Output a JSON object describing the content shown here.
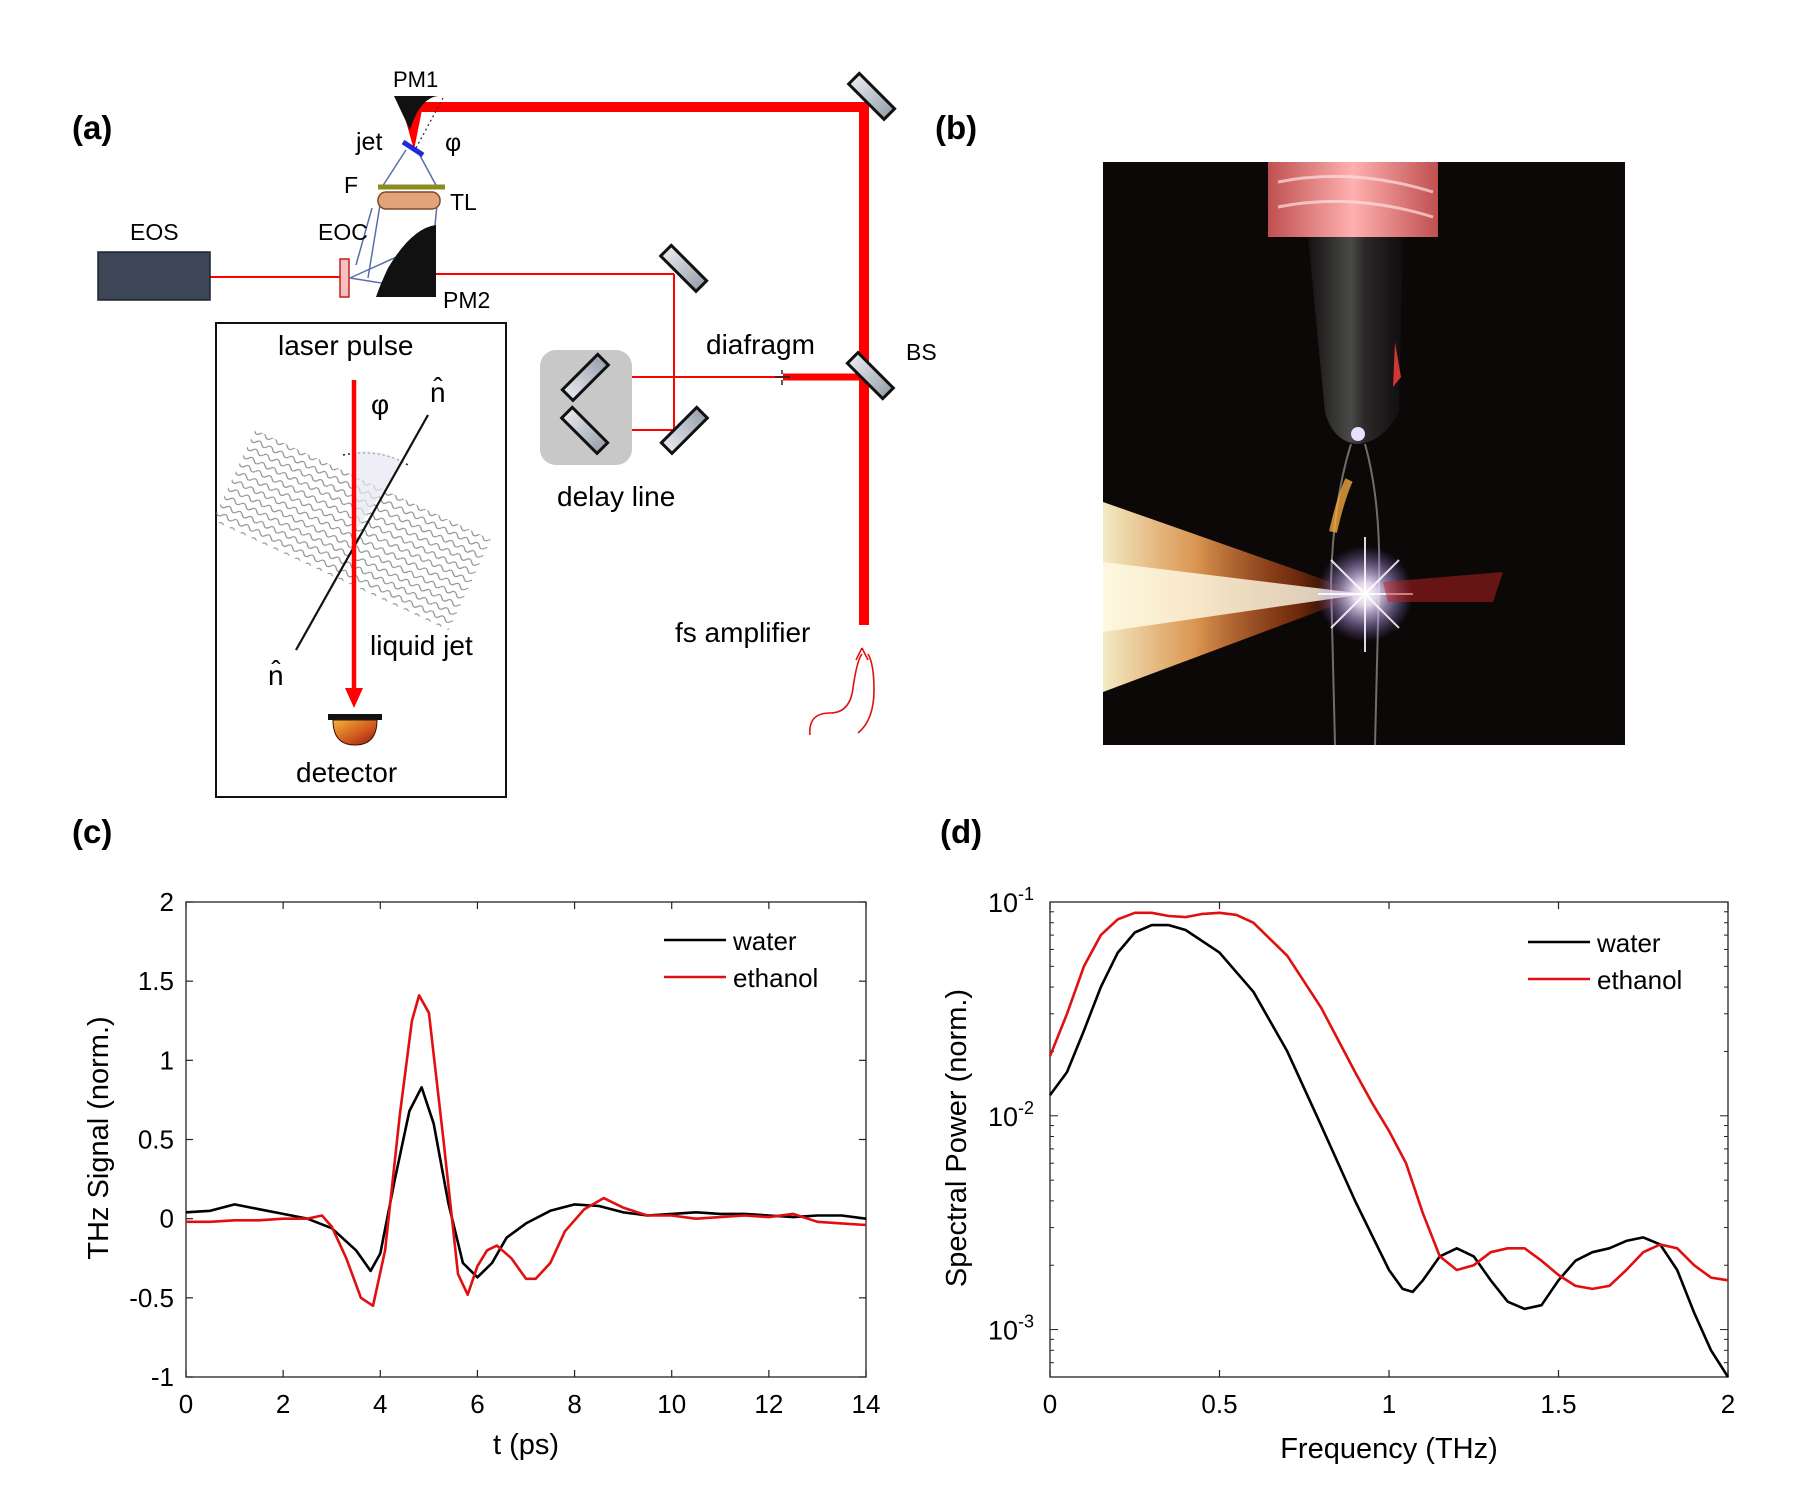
{
  "panels": {
    "a": "(a)",
    "b": "(b)",
    "c": "(c)",
    "d": "(d)"
  },
  "setup": {
    "pm1": "PM1",
    "jet": "jet",
    "phi": "φ",
    "f": "F",
    "tl": "TL",
    "eos": "EOS",
    "eoc": "EOC",
    "pm2": "PM2",
    "bs": "BS",
    "diafragm": "diafragm",
    "delay_line": "delay line",
    "fs_amplifier": "fs amplifier"
  },
  "inset": {
    "laser_pulse": "laser pulse",
    "phi": "φ",
    "n_hat_top": "n̂",
    "n_hat_bottom": "n̂",
    "liquid_jet": "liquid jet",
    "detector": "detector"
  },
  "colors": {
    "laser": "#ff0000",
    "thz_beam": "#5a6fa8",
    "eos_box": "#3d4657",
    "filter": "#8b8b22",
    "lens": "#e4a27a",
    "jet": "#1f2ad8",
    "water": "#000000",
    "ethanol": "#e01010"
  },
  "chart_data": [
    {
      "type": "line",
      "xlabel": "t (ps)",
      "ylabel": "THz Signal (norm.)",
      "xlim": [
        0,
        14
      ],
      "ylim": [
        -1,
        2
      ],
      "xticks": [
        "0",
        "2",
        "4",
        "6",
        "8",
        "10",
        "12",
        "14"
      ],
      "yticks": [
        "-1",
        "-0.5",
        "0",
        "0.5",
        "1",
        "1.5",
        "2"
      ],
      "legend_position": "top-right",
      "series": [
        {
          "name": "water",
          "x": [
            0,
            0.5,
            1,
            1.5,
            2,
            2.5,
            3,
            3.5,
            3.8,
            4,
            4.3,
            4.6,
            4.85,
            5.1,
            5.4,
            5.7,
            6,
            6.3,
            6.6,
            7,
            7.5,
            8,
            8.5,
            9,
            9.5,
            10,
            10.5,
            11,
            11.5,
            12,
            12.5,
            13,
            13.5,
            14
          ],
          "y": [
            0.04,
            0.05,
            0.09,
            0.06,
            0.03,
            0.0,
            -0.06,
            -0.2,
            -0.33,
            -0.22,
            0.25,
            0.68,
            0.83,
            0.6,
            0.1,
            -0.28,
            -0.37,
            -0.28,
            -0.12,
            -0.03,
            0.05,
            0.09,
            0.08,
            0.04,
            0.02,
            0.03,
            0.04,
            0.03,
            0.03,
            0.02,
            0.01,
            0.02,
            0.02,
            0.0
          ]
        },
        {
          "name": "ethanol",
          "x": [
            0,
            0.5,
            1,
            1.5,
            2,
            2.5,
            2.8,
            3,
            3.3,
            3.6,
            3.85,
            4.1,
            4.4,
            4.65,
            4.8,
            5,
            5.3,
            5.6,
            5.8,
            6,
            6.2,
            6.4,
            6.7,
            7,
            7.2,
            7.5,
            7.8,
            8.2,
            8.6,
            9,
            9.5,
            10,
            10.5,
            11,
            11.5,
            12,
            12.5,
            13,
            13.5,
            14
          ],
          "y": [
            -0.02,
            -0.02,
            -0.01,
            -0.01,
            0.0,
            0.0,
            0.02,
            -0.05,
            -0.25,
            -0.5,
            -0.55,
            -0.2,
            0.65,
            1.25,
            1.41,
            1.3,
            0.5,
            -0.35,
            -0.48,
            -0.3,
            -0.2,
            -0.17,
            -0.25,
            -0.38,
            -0.38,
            -0.28,
            -0.08,
            0.06,
            0.13,
            0.07,
            0.02,
            0.02,
            0.0,
            0.01,
            0.02,
            0.01,
            0.03,
            -0.02,
            -0.03,
            -0.04
          ]
        }
      ]
    },
    {
      "type": "line",
      "xlabel": "Frequency (THz)",
      "ylabel": "Spectral Power (norm.)",
      "xlim": [
        0,
        2
      ],
      "ylim": [
        0.0006,
        0.1
      ],
      "yscale": "log",
      "xticks": [
        "0",
        "0.5",
        "1",
        "1.5",
        "2"
      ],
      "yticks": [
        "10^-3",
        "10^-2",
        "10^-1"
      ],
      "legend_position": "top-right",
      "series": [
        {
          "name": "water",
          "x": [
            0,
            0.05,
            0.1,
            0.15,
            0.2,
            0.25,
            0.3,
            0.35,
            0.4,
            0.5,
            0.6,
            0.7,
            0.8,
            0.9,
            1.0,
            1.04,
            1.07,
            1.1,
            1.15,
            1.2,
            1.25,
            1.3,
            1.35,
            1.4,
            1.45,
            1.5,
            1.55,
            1.6,
            1.65,
            1.7,
            1.75,
            1.8,
            1.85,
            1.9,
            1.95,
            2.0
          ],
          "y": [
            0.0125,
            0.016,
            0.025,
            0.04,
            0.058,
            0.072,
            0.078,
            0.078,
            0.074,
            0.058,
            0.038,
            0.02,
            0.009,
            0.004,
            0.0019,
            0.00155,
            0.0015,
            0.0017,
            0.0022,
            0.0024,
            0.0022,
            0.0017,
            0.00135,
            0.00125,
            0.0013,
            0.0017,
            0.0021,
            0.0023,
            0.0024,
            0.0026,
            0.0027,
            0.0025,
            0.0019,
            0.0012,
            0.0008,
            0.0006
          ]
        },
        {
          "name": "ethanol",
          "x": [
            0,
            0.05,
            0.1,
            0.15,
            0.2,
            0.25,
            0.3,
            0.35,
            0.4,
            0.45,
            0.5,
            0.55,
            0.6,
            0.7,
            0.8,
            0.9,
            0.95,
            1.0,
            1.05,
            1.1,
            1.15,
            1.2,
            1.25,
            1.3,
            1.35,
            1.4,
            1.45,
            1.5,
            1.55,
            1.6,
            1.65,
            1.7,
            1.75,
            1.8,
            1.85,
            1.9,
            1.95,
            2.0
          ],
          "y": [
            0.019,
            0.03,
            0.05,
            0.07,
            0.083,
            0.089,
            0.089,
            0.086,
            0.085,
            0.088,
            0.089,
            0.087,
            0.08,
            0.056,
            0.032,
            0.016,
            0.0115,
            0.0085,
            0.006,
            0.0035,
            0.0022,
            0.0019,
            0.002,
            0.0023,
            0.0024,
            0.0024,
            0.0021,
            0.0018,
            0.0016,
            0.00155,
            0.0016,
            0.0019,
            0.0023,
            0.0025,
            0.0024,
            0.002,
            0.00175,
            0.0017
          ]
        }
      ]
    }
  ]
}
